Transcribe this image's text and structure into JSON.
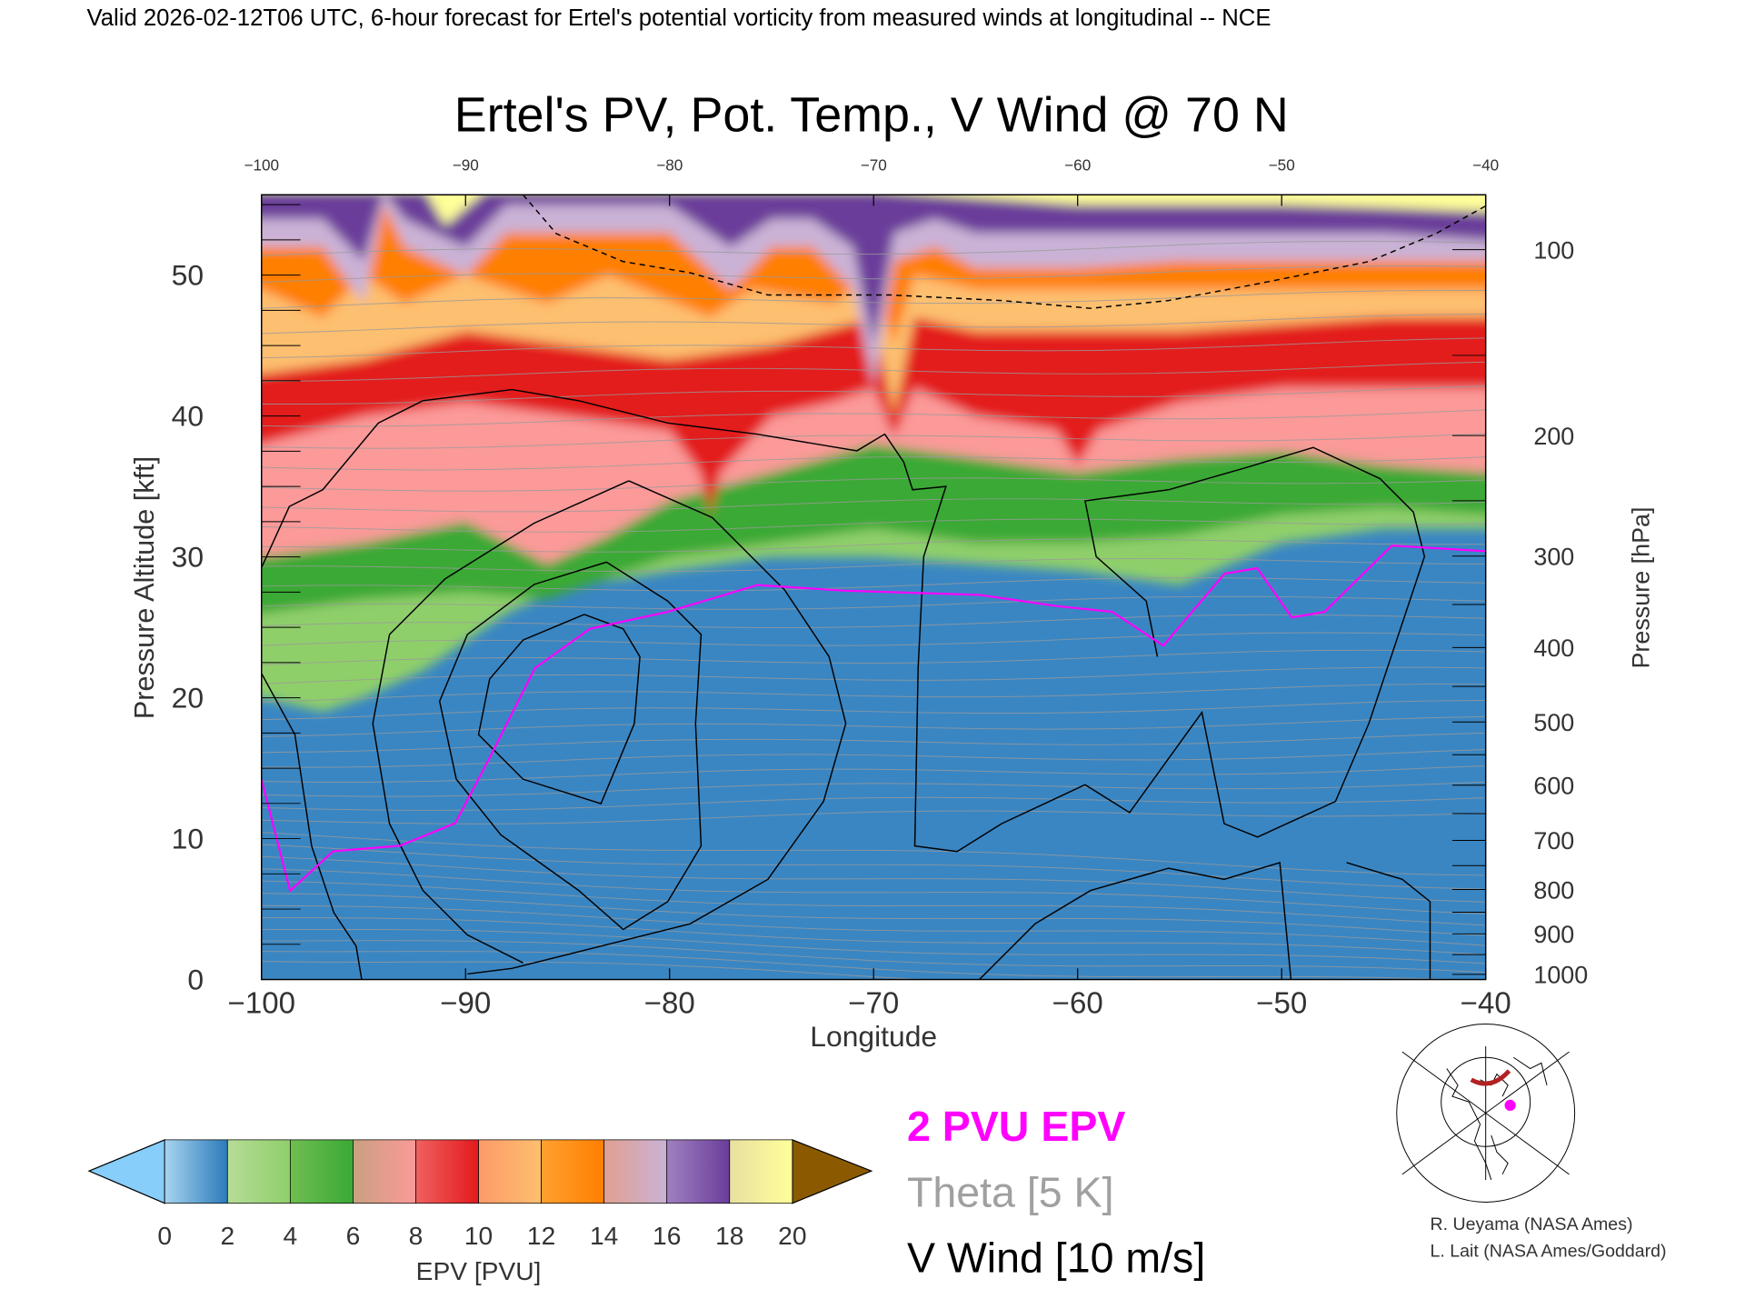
{
  "header": {
    "caption": "Valid 2026-02-12T06 UTC, 6-hour forecast for Ertel's potential vorticity from measured winds at longitudinal -- NCE"
  },
  "chart_data": {
    "type": "heatmap",
    "title": "Ertel's PV, Pot. Temp., V Wind @ 70 N",
    "xlabel": "Longitude",
    "ylabel": "Pressure Altitude [kft]",
    "ylabel_right": "Pressure [hPa]",
    "xlim": [
      -100,
      -40
    ],
    "ylim": [
      0,
      55.7
    ],
    "x_ticks": [
      -100,
      -90,
      -80,
      -70,
      -60,
      -50,
      -40
    ],
    "x_tick_labels": [
      "−100",
      "−90",
      "−80",
      "−70",
      "−60",
      "−50",
      "−40"
    ],
    "top_tick_labels": [
      "−100",
      "−90",
      "−80",
      "−70",
      "−60",
      "−50",
      "−40"
    ],
    "y_ticks": [
      0,
      10,
      20,
      30,
      40,
      50
    ],
    "y_tick_labels": [
      "0",
      "10",
      "20",
      "30",
      "40",
      "50"
    ],
    "pressure_ticks": [
      100,
      200,
      300,
      400,
      500,
      600,
      700,
      800,
      900,
      1000
    ],
    "pressure_tick_labels": [
      "100",
      "200",
      "300",
      "400",
      "500",
      "600",
      "700",
      "800",
      "900",
      "1000"
    ],
    "pv_bands": [
      {
        "pv": 3,
        "color": "#8fcf6a",
        "boundary": [
          [
            -100,
            20
          ],
          [
            -97,
            19
          ],
          [
            -95,
            20
          ],
          [
            -92,
            22
          ],
          [
            -90,
            24
          ],
          [
            -88,
            26
          ],
          [
            -85,
            28
          ],
          [
            -82,
            28.5
          ],
          [
            -80,
            29
          ],
          [
            -75,
            30
          ],
          [
            -70,
            30
          ],
          [
            -65,
            29.5
          ],
          [
            -60,
            29
          ],
          [
            -55,
            28
          ],
          [
            -50,
            31
          ],
          [
            -45,
            32
          ],
          [
            -40,
            32
          ]
        ]
      },
      {
        "pv": 5,
        "color": "#3aa935",
        "boundary": [
          [
            -100,
            26
          ],
          [
            -95,
            27
          ],
          [
            -90,
            27.5
          ],
          [
            -86,
            27
          ],
          [
            -83,
            28.5
          ],
          [
            -80,
            30
          ],
          [
            -75,
            31
          ],
          [
            -70,
            32
          ],
          [
            -65,
            31
          ],
          [
            -60,
            31
          ],
          [
            -55,
            31.5
          ],
          [
            -50,
            33
          ],
          [
            -45,
            33.5
          ],
          [
            -40,
            33
          ]
        ]
      },
      {
        "pv": 7,
        "color": "#fb9a99",
        "boundary": [
          [
            -100,
            30
          ],
          [
            -95,
            31
          ],
          [
            -90,
            32.5
          ],
          [
            -86,
            29.5
          ],
          [
            -83,
            31.5
          ],
          [
            -80,
            34
          ],
          [
            -75,
            36
          ],
          [
            -70,
            38
          ],
          [
            -65,
            37
          ],
          [
            -60,
            36
          ],
          [
            -55,
            37
          ],
          [
            -50,
            37.5
          ],
          [
            -45,
            36.5
          ],
          [
            -40,
            36
          ]
        ]
      },
      {
        "pv": 9,
        "color": "#e31a1c",
        "boundary": [
          [
            -100,
            38
          ],
          [
            -95,
            40
          ],
          [
            -90,
            41
          ],
          [
            -85,
            40
          ],
          [
            -80,
            39
          ],
          [
            -78.5,
            36
          ],
          [
            -78,
            33
          ],
          [
            -77.5,
            36
          ],
          [
            -75,
            40
          ],
          [
            -72,
            41
          ],
          [
            -70,
            42
          ],
          [
            -69,
            38.5
          ],
          [
            -68,
            42
          ],
          [
            -65,
            40
          ],
          [
            -61,
            39
          ],
          [
            -60,
            36.5
          ],
          [
            -59,
            39
          ],
          [
            -55,
            41
          ],
          [
            -50,
            42
          ],
          [
            -45,
            42
          ],
          [
            -40,
            42
          ]
        ]
      },
      {
        "pv": 11,
        "color": "#fdbf6f",
        "boundary": [
          [
            -100,
            43
          ],
          [
            -95,
            44
          ],
          [
            -90,
            46
          ],
          [
            -85,
            45
          ],
          [
            -80,
            44
          ],
          [
            -75,
            45
          ],
          [
            -70,
            47
          ],
          [
            -69,
            40
          ],
          [
            -68,
            47
          ],
          [
            -65,
            46
          ],
          [
            -60,
            46
          ],
          [
            -55,
            46
          ],
          [
            -50,
            46.5
          ],
          [
            -45,
            47
          ],
          [
            -40,
            47
          ]
        ]
      },
      {
        "pv": 13,
        "color": "#ff7f00",
        "boundary": [
          [
            -100,
            49
          ],
          [
            -97,
            47
          ],
          [
            -95,
            50
          ],
          [
            -93,
            48
          ],
          [
            -90,
            50
          ],
          [
            -86,
            48
          ],
          [
            -83,
            50
          ],
          [
            -78,
            47
          ],
          [
            -76,
            49
          ],
          [
            -72,
            48
          ],
          [
            -70,
            50
          ],
          [
            -69,
            45
          ],
          [
            -68,
            50
          ],
          [
            -65,
            49
          ],
          [
            -60,
            49
          ],
          [
            -55,
            49
          ],
          [
            -50,
            49
          ],
          [
            -45,
            49
          ],
          [
            -40,
            49
          ]
        ]
      },
      {
        "pv": 15,
        "color": "#cab2d6",
        "boundary": [
          [
            -100,
            52
          ],
          [
            -97,
            52
          ],
          [
            -95,
            48
          ],
          [
            -94,
            55
          ],
          [
            -93,
            52
          ],
          [
            -90,
            50
          ],
          [
            -88,
            53
          ],
          [
            -85,
            53
          ],
          [
            -80,
            53
          ],
          [
            -77,
            49
          ],
          [
            -75,
            52
          ],
          [
            -73,
            52
          ],
          [
            -71,
            49
          ],
          [
            -70,
            42
          ],
          [
            -69,
            51
          ],
          [
            -67,
            52
          ],
          [
            -65,
            50.5
          ],
          [
            -60,
            50.5
          ],
          [
            -55,
            51
          ],
          [
            -50,
            51
          ],
          [
            -45,
            51
          ],
          [
            -40,
            51
          ]
        ]
      },
      {
        "pv": 17,
        "color": "#6a3d9a",
        "boundary": [
          [
            -100,
            54
          ],
          [
            -97,
            54
          ],
          [
            -95,
            51
          ],
          [
            -94,
            56
          ],
          [
            -93,
            54
          ],
          [
            -90,
            52
          ],
          [
            -88,
            55
          ],
          [
            -85,
            55
          ],
          [
            -80,
            55
          ],
          [
            -77,
            52
          ],
          [
            -75,
            54
          ],
          [
            -73,
            54
          ],
          [
            -71,
            52
          ],
          [
            -70,
            45
          ],
          [
            -69,
            53
          ],
          [
            -67,
            54
          ],
          [
            -65,
            53
          ],
          [
            -60,
            53
          ],
          [
            -55,
            53
          ],
          [
            -50,
            53
          ],
          [
            -45,
            53
          ],
          [
            -40,
            52.5
          ]
        ]
      },
      {
        "pv": 19,
        "color": "#ffff99",
        "boundary": [
          [
            -100,
            56
          ],
          [
            -92,
            56
          ],
          [
            -91,
            53.5
          ],
          [
            -89,
            56
          ],
          [
            -70,
            56
          ],
          [
            -65,
            55.5
          ],
          [
            -60,
            55
          ],
          [
            -55,
            55
          ],
          [
            -50,
            55
          ],
          [
            -45,
            54.8
          ],
          [
            -40,
            54.5
          ]
        ]
      }
    ],
    "pv_background_color": "#3a86c3",
    "pv_2pvu_contour": {
      "label": "2 PVU EPV",
      "color": "#ff00ff",
      "points": [
        [
          -100,
          14.2
        ],
        [
          -98.6,
          6.3
        ],
        [
          -96.5,
          9.1
        ],
        [
          -93.2,
          9.5
        ],
        [
          -90.5,
          11.1
        ],
        [
          -88.8,
          15.8
        ],
        [
          -86.6,
          22.1
        ],
        [
          -83.9,
          24.9
        ],
        [
          -80.1,
          26.1
        ],
        [
          -75.7,
          28.0
        ],
        [
          -71.4,
          27.6
        ],
        [
          -64.8,
          27.3
        ],
        [
          -61.0,
          26.5
        ],
        [
          -58.3,
          26.1
        ],
        [
          -55.8,
          23.7
        ],
        [
          -52.8,
          28.8
        ],
        [
          -51.2,
          29.2
        ],
        [
          -49.5,
          25.7
        ],
        [
          -47.9,
          26.1
        ],
        [
          -44.6,
          30.8
        ],
        [
          -40,
          30.4
        ]
      ]
    },
    "colorbar": {
      "label": "EPV [PVU]",
      "ticks": [
        "0",
        "2",
        "4",
        "6",
        "8",
        "10",
        "12",
        "14",
        "16",
        "18",
        "20"
      ],
      "segments": [
        [
          "#a8d4ef",
          "#2b7bba"
        ],
        [
          "#b6dc98",
          "#8fcf6a"
        ],
        [
          "#6fbe50",
          "#3aa935"
        ],
        [
          "#c9a080",
          "#fb9a99"
        ],
        [
          "#f06060",
          "#e31a1c"
        ],
        [
          "#fd9a6a",
          "#fdbf6f"
        ],
        [
          "#ffa030",
          "#ff7f00"
        ],
        [
          "#e0a090",
          "#cab2d6"
        ],
        [
          "#a080c0",
          "#6a3d9a"
        ],
        [
          "#e8e0a0",
          "#ffff99"
        ],
        [
          "#f0d070",
          "#c08040"
        ]
      ],
      "under_color": "#87cefa",
      "over_color": "#8b5a00"
    },
    "legend": {
      "pv_label": "2 PVU EPV",
      "pv_color": "#ff00ff",
      "theta_label": "Theta [5 K]",
      "theta_color": "#a0a0a0",
      "wind_label": "V Wind [10 m/s]",
      "wind_color": "#000000"
    }
  },
  "credits": {
    "line1": "R. Ueyama (NASA Ames)",
    "line2": "L. Lait (NASA Ames/Goddard)"
  }
}
